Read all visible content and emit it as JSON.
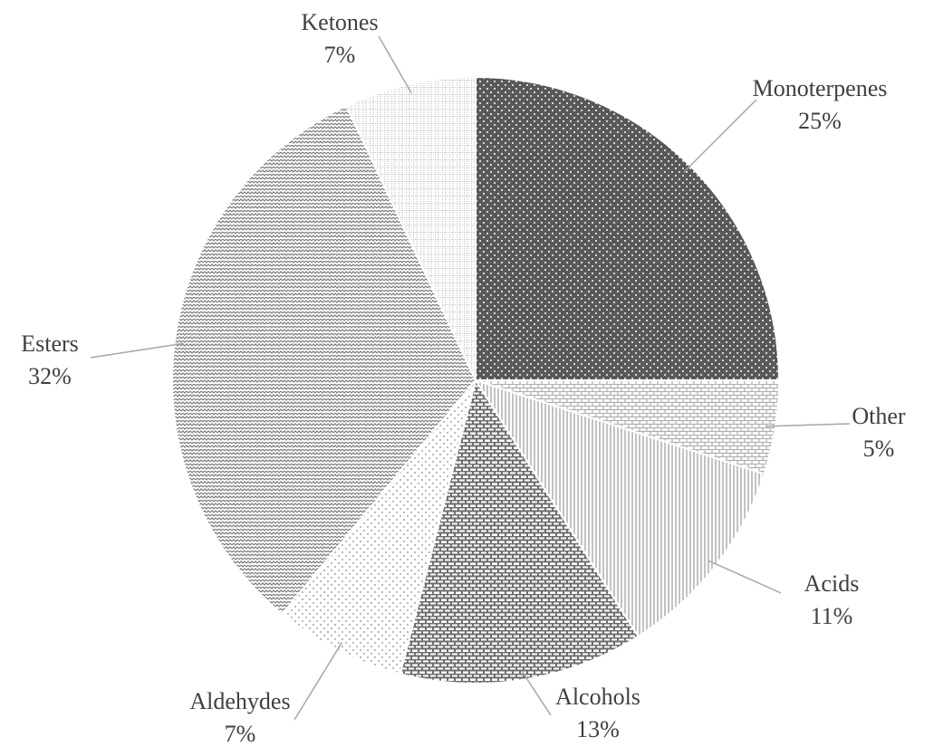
{
  "chart_data": {
    "type": "pie",
    "categories": [
      "Monoterpenes",
      "Other",
      "Acids",
      "Alcohols",
      "Aldehydes",
      "Esters",
      "Ketones"
    ],
    "values": [
      25,
      5,
      11,
      13,
      7,
      32,
      7
    ],
    "value_labels": [
      "25%",
      "5%",
      "11%",
      "13%",
      "7%",
      "32%",
      "7%"
    ],
    "colors": [
      "#595959",
      "#b0b0b0",
      "#9a9a9a",
      "#6e6e6e",
      "#8a8a8a",
      "#7a7a7a",
      "#c4c4c4"
    ]
  }
}
